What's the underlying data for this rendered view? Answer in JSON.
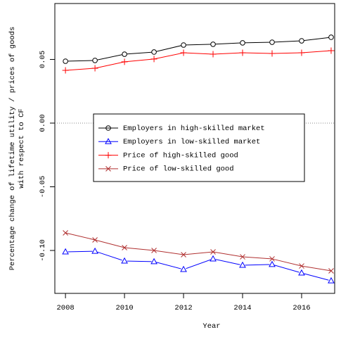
{
  "chart_data": {
    "type": "line",
    "x_label": "Year",
    "y_label": [
      "Percentage change of lifetime utility / prices of goods",
      "with respect to CF"
    ],
    "x": [
      2008,
      2009,
      2010,
      2011,
      2012,
      2013,
      2014,
      2015,
      2016,
      2017
    ],
    "series": [
      {
        "name": "Employers in high-skilled market",
        "color": "#000000",
        "marker": "circle",
        "values": [
          0.0486,
          0.0492,
          0.0541,
          0.0558,
          0.0613,
          0.0619,
          0.063,
          0.0635,
          0.0646,
          0.0674
        ]
      },
      {
        "name": "Employers in low-skilled market",
        "color": "#0000ff",
        "marker": "triangle",
        "values": [
          -0.1011,
          -0.1006,
          -0.1083,
          -0.1088,
          -0.1149,
          -0.1066,
          -0.1116,
          -0.111,
          -0.1177,
          -0.1238
        ]
      },
      {
        "name": "Price of high-skilled good",
        "color": "#ff0000",
        "marker": "plus",
        "values": [
          0.0414,
          0.0431,
          0.0481,
          0.0503,
          0.0552,
          0.0541,
          0.0552,
          0.0547,
          0.0552,
          0.0569
        ]
      },
      {
        "name": "Price of low-skilled good",
        "color": "#b03030",
        "marker": "cross",
        "values": [
          -0.0862,
          -0.0917,
          -0.0978,
          -0.1,
          -0.1033,
          -0.1011,
          -0.105,
          -0.1066,
          -0.1122,
          -0.116
        ]
      }
    ],
    "xlim": [
      2007.64,
      2017.12
    ],
    "ylim": [
      -0.1337,
      0.0939
    ],
    "xticks": [
      2008,
      2010,
      2012,
      2014,
      2016
    ],
    "yticks": [
      {
        "value": -0.1,
        "label": "-0.10"
      },
      -0.05,
      {
        "value": 0,
        "label": "0.00"
      },
      0.05
    ],
    "reference_line": 0
  }
}
